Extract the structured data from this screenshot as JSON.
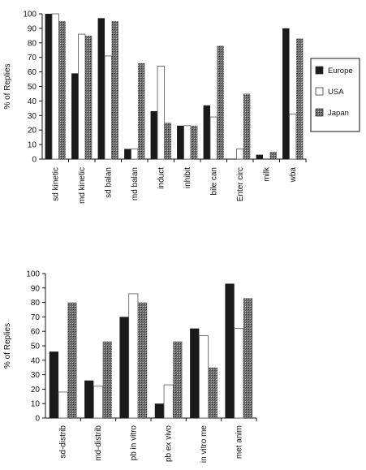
{
  "colors": {
    "europe": "#1a1a1a",
    "usa": "#ffffff",
    "japan": "#7a7a7a",
    "axis": "#111111"
  },
  "chart_data": [
    {
      "type": "bar",
      "ylabel": "% of Replies",
      "ylim": [
        0,
        100
      ],
      "yticks": [
        0,
        10,
        20,
        30,
        40,
        50,
        60,
        70,
        80,
        90,
        100
      ],
      "categories": [
        "sd kinetic",
        "md kinetic",
        "sd balan",
        "md balan",
        "induct",
        "inhibit",
        "bile can",
        "Enter circ",
        "milk",
        "wba"
      ],
      "series": [
        {
          "name": "Europe",
          "values": [
            100,
            59,
            97,
            7,
            33,
            23,
            37,
            0,
            3,
            90
          ]
        },
        {
          "name": "USA",
          "values": [
            100,
            86,
            71,
            7,
            64,
            23,
            29,
            7,
            0,
            31
          ]
        },
        {
          "name": "Japan",
          "values": [
            95,
            85,
            95,
            66,
            25,
            23,
            78,
            45,
            5,
            83
          ]
        }
      ],
      "legend": "right",
      "grid": false
    },
    {
      "type": "bar",
      "ylabel": "% of Replies",
      "ylim": [
        0,
        100
      ],
      "yticks": [
        0,
        10,
        20,
        30,
        40,
        50,
        60,
        70,
        80,
        90,
        100
      ],
      "categories": [
        "sd-distrib",
        "md-distrib",
        "pb in vitro",
        "pb ex vivo",
        "in vitro me",
        "met anim"
      ],
      "series": [
        {
          "name": "Europe",
          "values": [
            46,
            26,
            70,
            10,
            62,
            93
          ]
        },
        {
          "name": "USA",
          "values": [
            18,
            22,
            86,
            23,
            57,
            62
          ]
        },
        {
          "name": "Japan",
          "values": [
            80,
            53,
            80,
            53,
            35,
            83
          ]
        }
      ],
      "legend": "none",
      "grid": false
    }
  ]
}
